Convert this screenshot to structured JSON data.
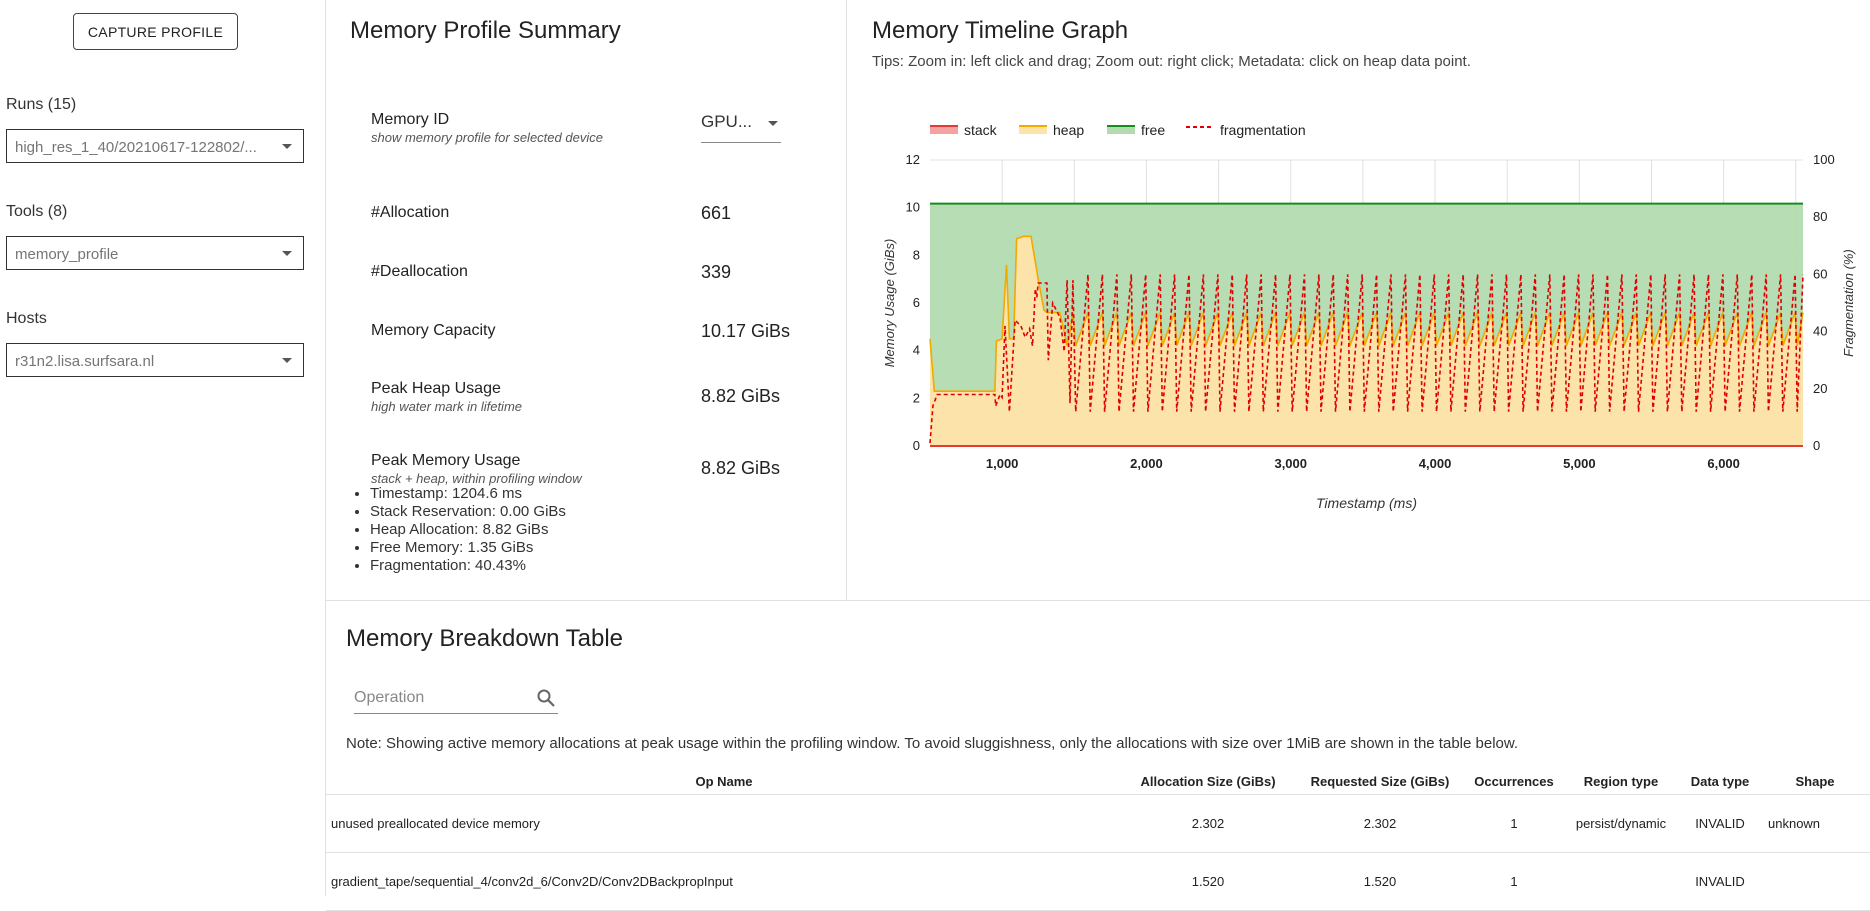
{
  "sidebar": {
    "capture_label": "CAPTURE PROFILE",
    "runs_label": "Runs (15)",
    "runs_value": "high_res_1_40/20210617-122802/...",
    "tools_label": "Tools (8)",
    "tools_value": "memory_profile",
    "hosts_label": "Hosts",
    "hosts_value": "r31n2.lisa.surfsara.nl"
  },
  "summary": {
    "title": "Memory Profile Summary",
    "memory_id_label": "Memory ID",
    "memory_id_sub": "show memory profile for selected device",
    "memory_id_value": "GPU...",
    "allocation_label": "#Allocation",
    "allocation_value": "661",
    "deallocation_label": "#Deallocation",
    "deallocation_value": "339",
    "capacity_label": "Memory Capacity",
    "capacity_value": "10.17 GiBs",
    "peak_heap_label": "Peak Heap Usage",
    "peak_heap_sub": "high water mark in lifetime",
    "peak_heap_value": "8.82 GiBs",
    "peak_mem_label": "Peak Memory Usage",
    "peak_mem_sub": "stack + heap, within profiling window",
    "peak_mem_value": "8.82 GiBs",
    "peak_details": [
      "Timestamp: 1204.6 ms",
      "Stack Reservation: 0.00 GiBs",
      "Heap Allocation: 8.82 GiBs",
      "Free Memory: 1.35 GiBs",
      "Fragmentation: 40.43%"
    ]
  },
  "timeline": {
    "title": "Memory Timeline Graph",
    "tips": "Tips: Zoom in: left click and drag; Zoom out: right click; Metadata: click on heap data point."
  },
  "breakdown": {
    "title": "Memory Breakdown Table",
    "search_placeholder": "Operation",
    "note": "Note: Showing active memory allocations at peak usage within the profiling window. To avoid sluggishness, only the allocations with size over 1MiB are shown in the table below.",
    "columns": [
      "Op Name",
      "Allocation Size (GiBs)",
      "Requested Size (GiBs)",
      "Occurrences",
      "Region type",
      "Data type",
      "Shape"
    ],
    "rows": [
      [
        "unused preallocated device memory",
        "2.302",
        "2.302",
        "1",
        "persist/dynamic",
        "INVALID",
        "unknown"
      ],
      [
        "gradient_tape/sequential_4/conv2d_6/Conv2D/Conv2DBackpropInput",
        "1.520",
        "1.520",
        "1",
        "",
        "INVALID",
        ""
      ]
    ]
  },
  "chart_data": {
    "type": "area",
    "xlabel": "Timestamp (ms)",
    "ylabel": "Memory Usage (GiBs)",
    "y2label": "Fragmentation (%)",
    "xlim": [
      500,
      6550
    ],
    "ylim": [
      0,
      12
    ],
    "y2lim": [
      0,
      100
    ],
    "xticks": [
      1000,
      2000,
      3000,
      4000,
      5000,
      6000
    ],
    "xtick_labels": [
      "1,000",
      "2,000",
      "3,000",
      "4,000",
      "5,000",
      "6,000"
    ],
    "yticks": [
      0,
      2,
      4,
      6,
      8,
      10,
      12
    ],
    "y2ticks": [
      0,
      20,
      40,
      60,
      80,
      100
    ],
    "grid": true,
    "legend_position": "top-left",
    "legend": [
      "stack",
      "heap",
      "free",
      "fragmentation"
    ],
    "colors": {
      "stack": "#e53935",
      "stack_fill": "#f4a3a3",
      "heap": "#f2a900",
      "heap_fill": "#fbe3a9",
      "free": "#1a8a1a",
      "free_fill": "#b3dbb0",
      "fragmentation": "#e00000"
    },
    "capacity": 10.17,
    "stack": {
      "x": [
        500,
        6550
      ],
      "y": [
        0,
        0
      ]
    },
    "heap": {
      "x": [
        500,
        530,
        950,
        960,
        1000,
        1030,
        1050,
        1080,
        1100,
        1150,
        1200,
        1250,
        1290,
        1310,
        1400,
        1450,
        1470,
        1490,
        1510
      ],
      "y": [
        4.5,
        2.3,
        2.3,
        4.4,
        4.5,
        7.6,
        4.5,
        4.5,
        8.7,
        8.8,
        8.8,
        7.0,
        5.7,
        5.6,
        5.6,
        4.2,
        4.8,
        5.6,
        4.2
      ],
      "cycle": {
        "start": 1510,
        "end": 6550,
        "period": 100,
        "low": 4.2,
        "high": 5.6
      }
    },
    "fragmentation": {
      "x": [
        500,
        520,
        550,
        950,
        955,
        985,
        1000,
        1020,
        1050,
        1090,
        1130,
        1160,
        1190,
        1210,
        1230,
        1240,
        1250,
        1310,
        1320,
        1350,
        1400,
        1430,
        1450,
        1470,
        1490,
        1510
      ],
      "y": [
        1,
        14,
        18,
        18,
        14,
        18,
        17,
        42,
        12,
        44,
        42,
        38,
        41,
        35,
        55,
        52,
        57,
        57,
        30,
        50,
        45,
        33,
        58,
        15,
        58,
        12
      ],
      "cycle": {
        "start": 1510,
        "end": 6550,
        "period": 100,
        "low": 12,
        "high": 60
      }
    }
  }
}
